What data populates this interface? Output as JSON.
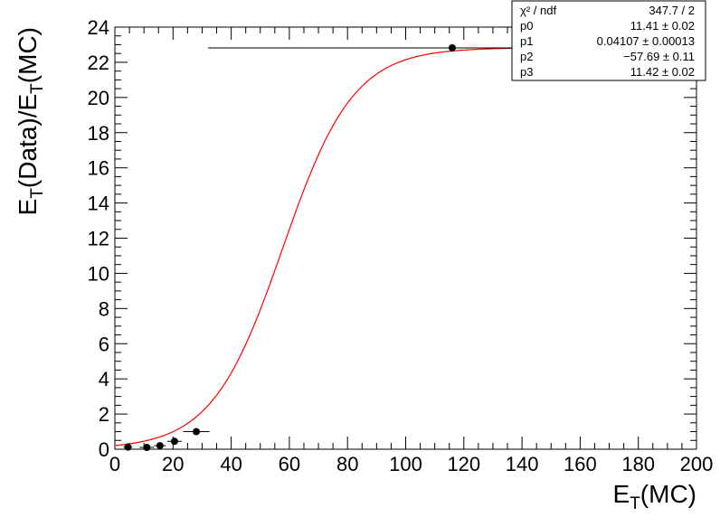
{
  "chart_data": {
    "type": "scatter",
    "title": "",
    "xlabel": {
      "main": "E",
      "sub": "T",
      "rest": "(MC)"
    },
    "ylabel": {
      "p1": "E",
      "s1": "T",
      "p2": "(Data)/E",
      "s2": "T",
      "p3": "(MC)"
    },
    "xlim": [
      0,
      200
    ],
    "ylim": [
      0,
      24
    ],
    "x_ticks": [
      0,
      20,
      40,
      60,
      80,
      100,
      120,
      140,
      160,
      180,
      200
    ],
    "y_ticks": [
      0,
      2,
      4,
      6,
      8,
      10,
      12,
      14,
      16,
      18,
      20,
      22,
      24
    ],
    "x_minor_step": 5,
    "y_minor_step": 0.5,
    "grid": false,
    "series": [
      {
        "kind": "points",
        "marker_color": "#000000",
        "points": [
          {
            "x": 4.5,
            "y": 0.12,
            "xerr": 1.5,
            "yerr": 0.05
          },
          {
            "x": 11.0,
            "y": 0.1,
            "xerr": 2.5,
            "yerr": 0.05
          },
          {
            "x": 15.5,
            "y": 0.2,
            "xerr": 2.0,
            "yerr": 0.05
          },
          {
            "x": 20.5,
            "y": 0.45,
            "xerr": 2.5,
            "yerr": 0.08
          },
          {
            "x": 28.0,
            "y": 1.0,
            "xerr": 4.5,
            "yerr": 0.1
          },
          {
            "x": 116.0,
            "y": 22.82,
            "xerr": 84.0,
            "yerr": 0.15
          }
        ]
      },
      {
        "kind": "fit",
        "color": "#ff0000",
        "function": "p0*tanh(p1*(x+p2))+p3",
        "params": {
          "p0": 11.41,
          "p1": 0.04107,
          "p2": -57.69,
          "p3": 11.42
        },
        "x_range": [
          0,
          140
        ]
      }
    ],
    "stats_box": {
      "position": "top-right",
      "rows": [
        {
          "label": "χ² / ndf",
          "value": "347.7 / 2"
        },
        {
          "label": "p0",
          "value": "11.41 ± 0.02"
        },
        {
          "label": "p1",
          "value": "0.04107 ± 0.00013"
        },
        {
          "label": "p2",
          "value": "−57.69 ± 0.11"
        },
        {
          "label": "p3",
          "value": "11.42 ± 0.02"
        }
      ]
    }
  }
}
